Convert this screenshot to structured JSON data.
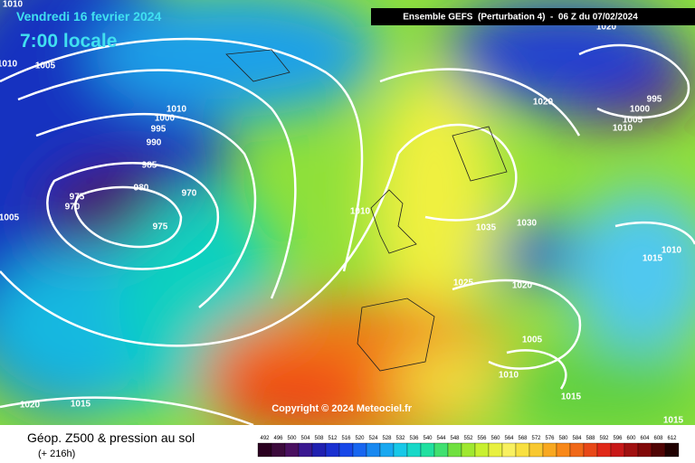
{
  "header": {
    "title": "Ensemble GEFS  (Perturbation 4)  -  06 Z du 07/02/2024",
    "date": "Vendredi 16 fevrier 2024",
    "time": "7:00 locale"
  },
  "copyright": "Copyright © 2024 Meteociel.fr",
  "footer": {
    "title": "Géop. Z500 & pression au sol",
    "lead": "(+ 216h)"
  },
  "legend": {
    "labels": [
      "492",
      "496",
      "500",
      "504",
      "508",
      "512",
      "516",
      "520",
      "524",
      "528",
      "532",
      "536",
      "540",
      "544",
      "548",
      "552",
      "556",
      "560",
      "564",
      "568",
      "572",
      "576",
      "580",
      "584",
      "588",
      "592",
      "596",
      "600",
      "604",
      "608",
      "612"
    ]
  },
  "isobars": {
    "labels": [
      "1010",
      "1005",
      "1010",
      "1010",
      "1000",
      "995",
      "990",
      "985",
      "980",
      "975",
      "970",
      "970",
      "975",
      "1005",
      "1010",
      "1020",
      "1035",
      "1030",
      "1025",
      "1020",
      "1005",
      "1010",
      "1015",
      "1020",
      "1015",
      "1020",
      "995",
      "1000",
      "1005",
      "1010",
      "1015",
      "1010",
      "1015"
    ]
  }
}
